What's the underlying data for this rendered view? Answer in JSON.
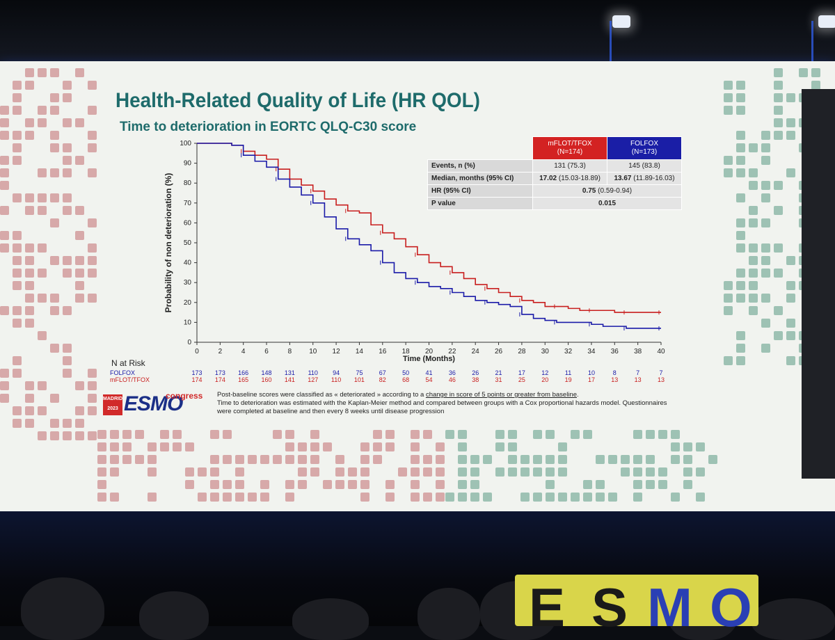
{
  "slide": {
    "title": "Health-Related Quality of Life (HR QOL)",
    "subtitle": "Time to deterioration in EORTC QLQ-C30 score",
    "footnote_line1_pre": "Post-baseline scores were classified as « deteriorated » according to a ",
    "footnote_line1_underlined": "change in score of 5 points or greater from baseline",
    "footnote_line1_post": ".",
    "footnote_line2": "Time to deterioration was estimated with the Kaplan-Meier method and compared between groups with a Cox proportional hazards model. Questionnaires were completed at baseline and then every 8 weeks until disease progression",
    "logo": {
      "city": "MADRID",
      "year": "2023",
      "brand": "ESMO",
      "suffix": "congress"
    }
  },
  "stats_table": {
    "header_arm1_name": "mFLOT/TFOX",
    "header_arm1_n": "(N=174)",
    "header_arm2_name": "FOLFOX",
    "header_arm2_n": "(N=173)",
    "rows": [
      {
        "label": "Events, n (%)",
        "arm1": "131 (75.3)",
        "arm2": "145 (83.8)"
      },
      {
        "label": "Median, months (95% CI)",
        "arm1_bold": "17.02",
        "arm1_ci": "(15.03-18.89)",
        "arm2_bold": "13.67",
        "arm2_ci": "(11.89-16.03)"
      },
      {
        "label": "HR (95% CI)",
        "both_bold": "0.75",
        "both_ci": "(0.59-0.94)"
      },
      {
        "label": "P value",
        "both_bold": "0.015"
      }
    ]
  },
  "chart_data": {
    "type": "line",
    "title": "",
    "xlabel": "Time (Months)",
    "ylabel": "Probability of non deterioration (%)",
    "xlim": [
      0,
      40
    ],
    "ylim": [
      0,
      100
    ],
    "x_ticks": [
      0,
      2,
      4,
      6,
      8,
      10,
      12,
      14,
      16,
      18,
      20,
      22,
      24,
      26,
      28,
      30,
      32,
      34,
      36,
      38,
      40
    ],
    "y_ticks": [
      0,
      10,
      20,
      30,
      40,
      50,
      60,
      70,
      80,
      90,
      100
    ],
    "grid": false,
    "legend": "none",
    "series": [
      {
        "name": "mFLOT/TFOX",
        "color": "#c81e1e",
        "x": [
          0,
          3,
          4,
          5,
          6,
          7,
          8,
          9,
          10,
          11,
          12,
          13,
          14,
          15,
          16,
          17,
          18,
          19,
          20,
          21,
          22,
          23,
          24,
          25,
          26,
          27,
          28,
          29,
          30,
          31,
          32,
          33,
          34,
          35,
          36,
          37,
          38,
          39,
          40
        ],
        "y": [
          100,
          99,
          96,
          94,
          92,
          87,
          82,
          79,
          76,
          72,
          69,
          66,
          65,
          59,
          55,
          52,
          48,
          44,
          40,
          38,
          35,
          32,
          29,
          27,
          25,
          23,
          21,
          20,
          18,
          18,
          17,
          16,
          16,
          16,
          15,
          15,
          15,
          15,
          15
        ]
      },
      {
        "name": "FOLFOX",
        "color": "#1a1aa8",
        "x": [
          0,
          3,
          4,
          5,
          6,
          7,
          8,
          9,
          10,
          11,
          12,
          13,
          14,
          15,
          16,
          17,
          18,
          19,
          20,
          21,
          22,
          23,
          24,
          25,
          26,
          27,
          28,
          29,
          30,
          31,
          32,
          33,
          34,
          35,
          36,
          37,
          38,
          39,
          40
        ],
        "y": [
          100,
          99,
          94,
          91,
          88,
          82,
          78,
          74,
          70,
          63,
          57,
          52,
          49,
          46,
          40,
          35,
          32,
          30,
          28,
          27,
          25,
          23,
          21,
          20,
          19,
          18,
          14,
          12,
          11,
          10,
          10,
          10,
          9,
          8,
          8,
          7,
          7,
          7,
          7
        ]
      }
    ],
    "at_risk": {
      "label": "N at Risk",
      "times": [
        0,
        2,
        4,
        6,
        8,
        10,
        12,
        14,
        16,
        18,
        20,
        22,
        24,
        26,
        28,
        30,
        32,
        34,
        36,
        38,
        40
      ],
      "rows": [
        {
          "name": "FOLFOX",
          "color": "#1a1aa8",
          "values": [
            173,
            173,
            166,
            148,
            131,
            110,
            94,
            75,
            67,
            50,
            41,
            36,
            26,
            21,
            17,
            12,
            11,
            10,
            8,
            7,
            7
          ]
        },
        {
          "name": "mFLOT/TFOX",
          "color": "#c81e1e",
          "values": [
            174,
            174,
            165,
            160,
            141,
            127,
            110,
            101,
            82,
            68,
            54,
            46,
            38,
            31,
            25,
            20,
            19,
            17,
            13,
            13,
            13
          ]
        }
      ]
    }
  }
}
